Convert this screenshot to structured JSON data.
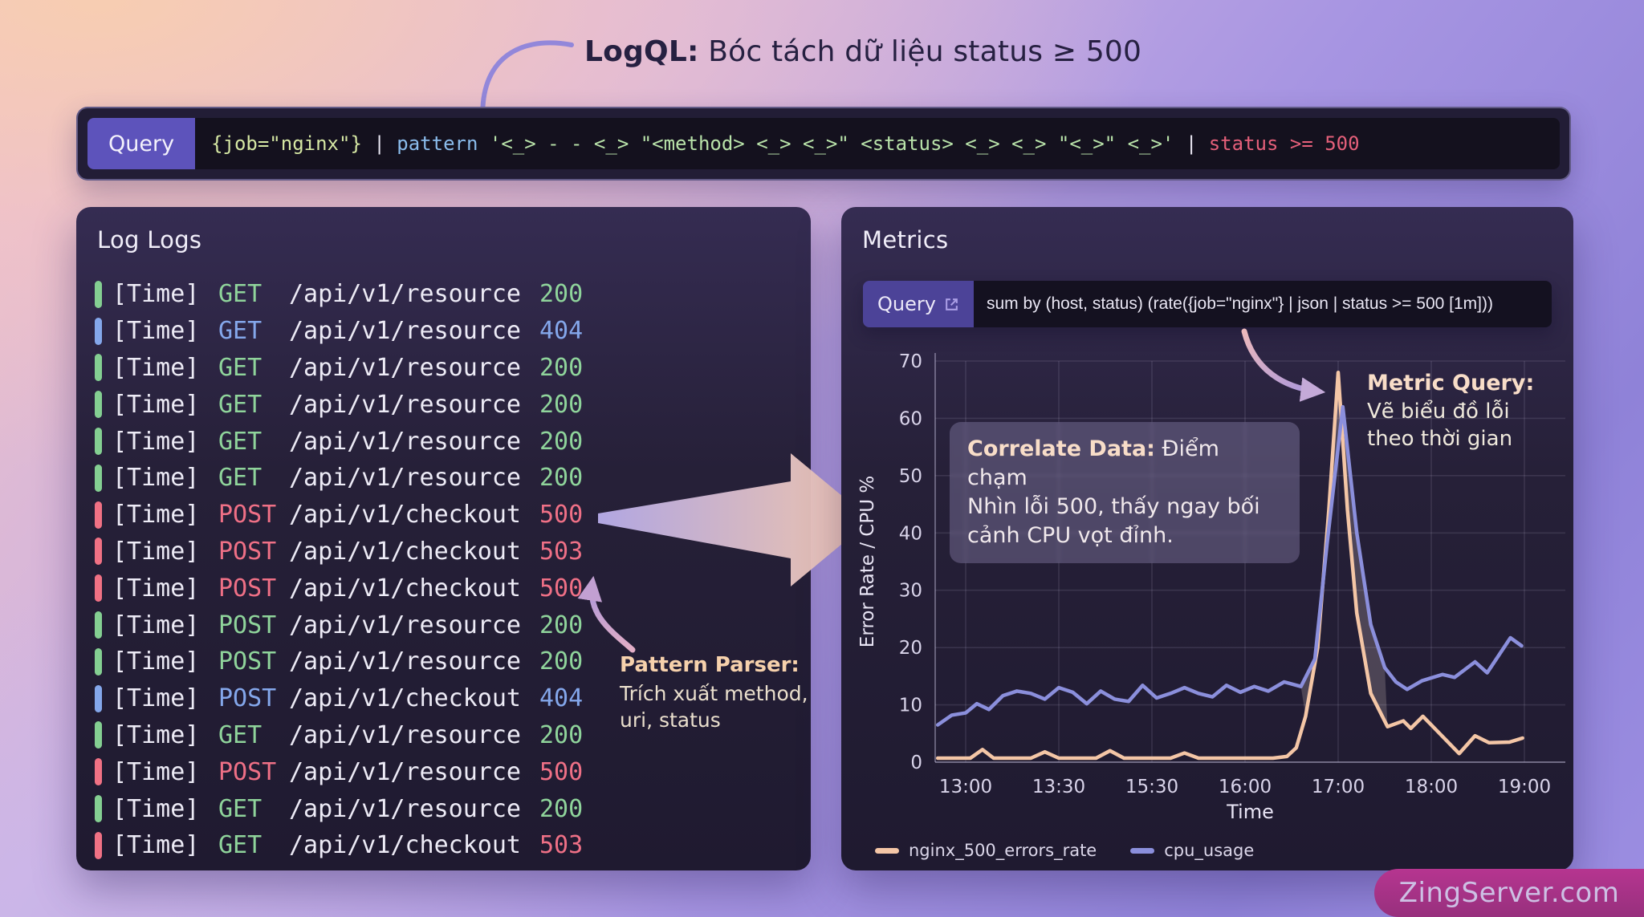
{
  "page": {
    "title_bold": "LogQL:",
    "title_rest": " Bóc tách dữ liệu status ≥ 500",
    "watermark": "ZingServer.com"
  },
  "query_bar": {
    "label": "Query",
    "segments": [
      {
        "t": "{job=\"nginx\"}",
        "c": "lime"
      },
      {
        "t": " | ",
        "c": "pipe"
      },
      {
        "t": "pattern",
        "c": "blue"
      },
      {
        "t": " '<_> - - <_> \"<method> <_> <_>\" <status> <_> <_> \"<_>\" <_>'",
        "c": "green"
      },
      {
        "t": " | ",
        "c": "pipe"
      },
      {
        "t": "status >= 500",
        "c": "red"
      }
    ]
  },
  "log_panel": {
    "title": "Log Logs",
    "rows": [
      {
        "time": "[Time]",
        "method": "GET",
        "path": "/api/v1/resource",
        "status": "200",
        "bar": "green",
        "mc": "green",
        "sc": "green"
      },
      {
        "time": "[Time]",
        "method": "GET",
        "path": "/api/v1/resource",
        "status": "404",
        "bar": "blue",
        "mc": "blue",
        "sc": "blue"
      },
      {
        "time": "[Time]",
        "method": "GET",
        "path": "/api/v1/resource",
        "status": "200",
        "bar": "green",
        "mc": "green",
        "sc": "green"
      },
      {
        "time": "[Time]",
        "method": "GET",
        "path": "/api/v1/resource",
        "status": "200",
        "bar": "green",
        "mc": "green",
        "sc": "green"
      },
      {
        "time": "[Time]",
        "method": "GET",
        "path": "/api/v1/resource",
        "status": "200",
        "bar": "green",
        "mc": "green",
        "sc": "green"
      },
      {
        "time": "[Time]",
        "method": "GET",
        "path": "/api/v1/resource",
        "status": "200",
        "bar": "green",
        "mc": "green",
        "sc": "green"
      },
      {
        "time": "[Time]",
        "method": "POST",
        "path": "/api/v1/checkout",
        "status": "500",
        "bar": "red",
        "mc": "red",
        "sc": "red"
      },
      {
        "time": "[Time]",
        "method": "POST",
        "path": "/api/v1/checkout",
        "status": "503",
        "bar": "red",
        "mc": "red",
        "sc": "red"
      },
      {
        "time": "[Time]",
        "method": "POST",
        "path": "/api/v1/checkout",
        "status": "500",
        "bar": "red",
        "mc": "red",
        "sc": "red"
      },
      {
        "time": "[Time]",
        "method": "POST",
        "path": "/api/v1/resource",
        "status": "200",
        "bar": "green",
        "mc": "green",
        "sc": "green"
      },
      {
        "time": "[Time]",
        "method": "POST",
        "path": "/api/v1/resource",
        "status": "200",
        "bar": "green",
        "mc": "green",
        "sc": "green"
      },
      {
        "time": "[Time]",
        "method": "POST",
        "path": "/api/v1/checkout",
        "status": "404",
        "bar": "blue",
        "mc": "blue",
        "sc": "blue"
      },
      {
        "time": "[Time]",
        "method": "GET",
        "path": "/api/v1/resource",
        "status": "200",
        "bar": "green",
        "mc": "green",
        "sc": "green"
      },
      {
        "time": "[Time]",
        "method": "POST",
        "path": "/api/v1/resource",
        "status": "500",
        "bar": "red",
        "mc": "red",
        "sc": "red"
      },
      {
        "time": "[Time]",
        "method": "GET",
        "path": "/api/v1/resource",
        "status": "200",
        "bar": "green",
        "mc": "green",
        "sc": "green"
      },
      {
        "time": "[Time]",
        "method": "GET",
        "path": "/api/v1/checkout",
        "status": "503",
        "bar": "red",
        "mc": "green",
        "sc": "red"
      }
    ]
  },
  "pattern_note": {
    "title": "Pattern Parser:",
    "line1": "Trích xuất method,",
    "line2": "uri, status"
  },
  "metrics_panel": {
    "title": "Metrics",
    "query_label": "Query",
    "query_link_icon": "external-link-icon",
    "query_text": "sum by (host, status) (rate({job=\"nginx\"} | json | status >= 500 [1m]))",
    "correlate_note": {
      "title": "Correlate Data:",
      "line1_rest": " Điểm chạm",
      "line2": "Nhìn lỗi 500, thấy ngay bối",
      "line3": "cảnh CPU vọt đỉnh."
    },
    "metric_note": {
      "title": "Metric Query:",
      "line1": "Vẽ biểu đồ lỗi",
      "line2": "theo thời gian"
    }
  },
  "chart_data": {
    "type": "line",
    "xlabel": "Time",
    "ylabel": "Error Rate / CPU %",
    "x_tick_labels": [
      "13:00",
      "13:30",
      "15:30",
      "16:00",
      "17:00",
      "18:00",
      "19:00"
    ],
    "y_ticks": [
      0,
      10,
      20,
      30,
      40,
      50,
      60,
      70
    ],
    "ylim": [
      0,
      70
    ],
    "grid": true,
    "legend_position": "bottom",
    "series": [
      {
        "name": "nginx_500_errors_rate",
        "color": "#f4c6a6",
        "points": [
          [
            -0.3,
            0.7
          ],
          [
            0.05,
            0.7
          ],
          [
            0.18,
            2.2
          ],
          [
            0.3,
            0.7
          ],
          [
            0.7,
            0.7
          ],
          [
            0.85,
            1.8
          ],
          [
            1.0,
            0.7
          ],
          [
            1.4,
            0.7
          ],
          [
            1.55,
            2.0
          ],
          [
            1.7,
            0.7
          ],
          [
            2.2,
            0.7
          ],
          [
            2.35,
            1.6
          ],
          [
            2.5,
            0.7
          ],
          [
            3.0,
            0.7
          ],
          [
            3.3,
            0.7
          ],
          [
            3.45,
            1.0
          ],
          [
            3.55,
            2.5
          ],
          [
            3.65,
            8
          ],
          [
            3.78,
            20
          ],
          [
            3.9,
            44
          ],
          [
            4.0,
            68
          ],
          [
            4.1,
            44
          ],
          [
            4.2,
            26
          ],
          [
            4.35,
            12
          ],
          [
            4.53,
            6.2
          ],
          [
            4.7,
            7.2
          ],
          [
            4.78,
            5.9
          ],
          [
            4.91,
            8.0
          ],
          [
            5.3,
            1.5
          ],
          [
            5.47,
            4.6
          ],
          [
            5.62,
            3.4
          ],
          [
            5.84,
            3.5
          ],
          [
            5.98,
            4.2
          ]
        ]
      },
      {
        "name": "cpu_usage",
        "color": "#8b8fdc",
        "points": [
          [
            -0.3,
            6.5
          ],
          [
            -0.15,
            8.2
          ],
          [
            0.0,
            8.6
          ],
          [
            0.12,
            10.2
          ],
          [
            0.25,
            9.2
          ],
          [
            0.4,
            11.6
          ],
          [
            0.55,
            12.4
          ],
          [
            0.7,
            12.0
          ],
          [
            0.85,
            11.0
          ],
          [
            1.0,
            13.0
          ],
          [
            1.15,
            12.2
          ],
          [
            1.3,
            10.2
          ],
          [
            1.45,
            12.4
          ],
          [
            1.6,
            11.0
          ],
          [
            1.75,
            10.6
          ],
          [
            1.9,
            13.4
          ],
          [
            2.05,
            11.2
          ],
          [
            2.2,
            12.0
          ],
          [
            2.35,
            13.0
          ],
          [
            2.5,
            12.0
          ],
          [
            2.65,
            11.4
          ],
          [
            2.8,
            13.4
          ],
          [
            2.95,
            12.2
          ],
          [
            3.1,
            13.2
          ],
          [
            3.25,
            12.4
          ],
          [
            3.42,
            14.0
          ],
          [
            3.6,
            13.2
          ],
          [
            3.75,
            18
          ],
          [
            3.88,
            38
          ],
          [
            4.05,
            62
          ],
          [
            4.2,
            40
          ],
          [
            4.35,
            24
          ],
          [
            4.5,
            16.5
          ],
          [
            4.62,
            14.0
          ],
          [
            4.74,
            12.7
          ],
          [
            4.9,
            14.2
          ],
          [
            5.12,
            15.3
          ],
          [
            5.25,
            14.8
          ],
          [
            5.47,
            17.5
          ],
          [
            5.6,
            15.6
          ],
          [
            5.85,
            21.7
          ],
          [
            5.97,
            20.3
          ]
        ]
      }
    ],
    "fill_between": {
      "from": 3.6,
      "to": 4.6,
      "color": "rgba(244,226,220,0.20)"
    }
  }
}
